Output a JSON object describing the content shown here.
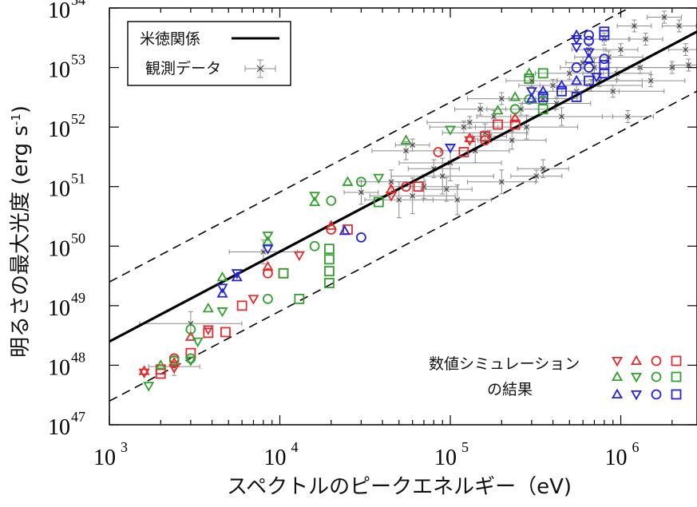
{
  "chart_data": {
    "type": "scatter",
    "x_scale": "log",
    "y_scale": "log",
    "xlim": [
      1000,
      2800000
    ],
    "ylim": [
      1e+47,
      1e+54
    ],
    "xlabel": "スペクトルのピークエネルギー（eV)",
    "ylabel_main": "明るさの最大光度",
    "ylabel_unit": "(erg s",
    "ylabel_unit_exp": "-1",
    "ylabel_unit_close": ")",
    "x_ticks": [
      {
        "value": 1000,
        "base": "10",
        "exp": "3"
      },
      {
        "value": 10000,
        "base": "10",
        "exp": "4"
      },
      {
        "value": 100000,
        "base": "10",
        "exp": "5"
      },
      {
        "value": 1000000,
        "base": "10",
        "exp": "6"
      }
    ],
    "y_ticks": [
      {
        "value": 1e+47,
        "base": "10",
        "exp": "47"
      },
      {
        "value": 1e+48,
        "base": "10",
        "exp": "48"
      },
      {
        "value": 1e+49,
        "base": "10",
        "exp": "49"
      },
      {
        "value": 1e+50,
        "base": "10",
        "exp": "50"
      },
      {
        "value": 1e+51,
        "base": "10",
        "exp": "51"
      },
      {
        "value": 1e+52,
        "base": "10",
        "exp": "52"
      },
      {
        "value": 1e+53,
        "base": "10",
        "exp": "53"
      },
      {
        "value": 1e+54,
        "base": "10",
        "exp": "54"
      }
    ],
    "relation": {
      "name": "米徳関係",
      "points": [
        [
          1000,
          2.5e+48
        ],
        [
          2800000,
          4e+53
        ]
      ],
      "band_upper": [
        [
          1000,
          2.5e+49
        ],
        [
          2800000,
          4e+54
        ]
      ],
      "band_lower": [
        [
          1000,
          2.5e+47
        ],
        [
          2800000,
          4e+52
        ]
      ]
    },
    "legend": {
      "position": "top-left",
      "relation_label": "米徳関係",
      "observed_label": "観測データ"
    },
    "sim_label_line1": "数値シミュレーション",
    "sim_label_line2": "の結果",
    "sim_key_symbols": [
      [
        "tri-down",
        "tri-up",
        "circle",
        "square"
      ],
      [
        "tri-up",
        "tri-down",
        "circle",
        "square"
      ],
      [
        "tri-up",
        "tri-down",
        "circle",
        "square"
      ]
    ],
    "colors": {
      "relation": "#000000",
      "observed": "#8c8c8c",
      "red": "#e8292b",
      "green": "#31a12e",
      "blue": "#2121e0"
    },
    "observed": [
      [
        3000,
        5e+48,
        0.3,
        0.2
      ],
      [
        2400,
        9.5e+47,
        0.15,
        0.15
      ],
      [
        8000,
        8e+49,
        0.2,
        0.2
      ],
      [
        30000,
        8e+50,
        0.1,
        0.2
      ],
      [
        50000,
        6e+50,
        0.2,
        0.3
      ],
      [
        60000,
        5e+51,
        0.1,
        0.1
      ],
      [
        60000,
        7e+50,
        0.25,
        0.3
      ],
      [
        70000,
        1e+51,
        0.2,
        0.2
      ],
      [
        80000,
        2e+51,
        0.15,
        0.15
      ],
      [
        90000,
        1.5e+51,
        0.3,
        0.3
      ],
      [
        100000,
        2.5e+51,
        0.3,
        0.3
      ],
      [
        110000,
        6e+50,
        0.2,
        0.25
      ],
      [
        120000,
        1e+52,
        0.2,
        0.1
      ],
      [
        140000,
        4e+51,
        0.2,
        0.2
      ],
      [
        150000,
        2e+52,
        0.15,
        0.1
      ],
      [
        160000,
        8e+51,
        0.25,
        0.15
      ],
      [
        180000,
        1.5e+52,
        0.1,
        0.1
      ],
      [
        200000,
        3e+52,
        0.2,
        0.1
      ],
      [
        200000,
        1.2e+51,
        0.2,
        0.2
      ],
      [
        230000,
        6e+51,
        0.2,
        0.15
      ],
      [
        260000,
        2e+52,
        0.2,
        0.1
      ],
      [
        280000,
        1e+52,
        0.3,
        0.2
      ],
      [
        300000,
        6e+52,
        0.15,
        0.1
      ],
      [
        350000,
        3e+52,
        0.2,
        0.1
      ],
      [
        350000,
        2e+51,
        0.15,
        0.15
      ],
      [
        400000,
        5e+52,
        0.2,
        0.1
      ],
      [
        450000,
        1.5e+52,
        0.3,
        0.15
      ],
      [
        500000,
        8e+52,
        0.2,
        0.1
      ],
      [
        550000,
        4e+52,
        0.25,
        0.1
      ],
      [
        600000,
        1.2e+53,
        0.1,
        0.1
      ],
      [
        650000,
        2e+53,
        0.1,
        0.1
      ],
      [
        700000,
        1e+53,
        0.2,
        0.15
      ],
      [
        750000,
        6e+52,
        0.25,
        0.1
      ],
      [
        800000,
        3e+53,
        0.15,
        0.1
      ],
      [
        850000,
        1.5e+53,
        0.2,
        0.1
      ],
      [
        900000,
        4e+52,
        0.3,
        0.1
      ],
      [
        950000,
        8e+52,
        0.2,
        0.1
      ],
      [
        1000000,
        2e+53,
        0.1,
        0.1
      ],
      [
        1100000,
        1.5e+52,
        0.15,
        0.1
      ],
      [
        1200000,
        5e+53,
        0.1,
        0.1
      ],
      [
        1300000,
        1e+53,
        0.2,
        0.1
      ],
      [
        1400000,
        3e+53,
        0.1,
        0.1
      ],
      [
        1500000,
        6e+52,
        0.2,
        0.1
      ],
      [
        1700000,
        1.5e+54,
        0.1,
        0.1
      ],
      [
        1800000,
        7e+53,
        0.1,
        0.1
      ],
      [
        2000000,
        1e+53,
        0.2,
        0.1
      ],
      [
        2200000,
        5e+53,
        0.1,
        0.1
      ],
      [
        2400000,
        2e+53,
        0.1,
        0.1
      ],
      [
        2500000,
        1.1e+53,
        0.1,
        0.1
      ],
      [
        55000,
        4e+51,
        0.2,
        0.15
      ],
      [
        45000,
        1.2e+51,
        0.2,
        0.2
      ],
      [
        170000,
        7e+51,
        0.1,
        0.1
      ],
      [
        320000,
        1.5e+51,
        0.15,
        0.1
      ],
      [
        95000,
        9e+50,
        0.15,
        0.2
      ],
      [
        130000,
        1.2e+52,
        0.25,
        0.1
      ],
      [
        420000,
        2.5e+52,
        0.2,
        0.1
      ],
      [
        670000,
        5e+52,
        0.3,
        0.1
      ]
    ],
    "simulations": [
      {
        "color": "red",
        "shape": "tri-down",
        "x": 1600,
        "y": 7.5e+47
      },
      {
        "color": "red",
        "shape": "tri-up",
        "x": 1600,
        "y": 8e+47
      },
      {
        "color": "red",
        "shape": "square",
        "x": 2000,
        "y": 7.2e+47
      },
      {
        "color": "red",
        "shape": "square",
        "x": 2000,
        "y": 8.5e+47
      },
      {
        "color": "red",
        "shape": "tri-down",
        "x": 2400,
        "y": 9e+47
      },
      {
        "color": "red",
        "shape": "tri-up",
        "x": 2400,
        "y": 1.1e+48
      },
      {
        "color": "red",
        "shape": "circle",
        "x": 2400,
        "y": 1.3e+48
      },
      {
        "color": "red",
        "shape": "square",
        "x": 3000,
        "y": 1.6e+48
      },
      {
        "color": "red",
        "shape": "tri-up",
        "x": 3000,
        "y": 3e+48
      },
      {
        "color": "red",
        "shape": "square",
        "x": 3800,
        "y": 3.5e+48
      },
      {
        "color": "red",
        "shape": "tri-down",
        "x": 3800,
        "y": 4e+48
      },
      {
        "color": "red",
        "shape": "square",
        "x": 4800,
        "y": 3.6e+48
      },
      {
        "color": "red",
        "shape": "square",
        "x": 6000,
        "y": 1e+49
      },
      {
        "color": "red",
        "shape": "tri-down",
        "x": 7000,
        "y": 1.3e+49
      },
      {
        "color": "red",
        "shape": "circle",
        "x": 8500,
        "y": 3.5e+49
      },
      {
        "color": "red",
        "shape": "tri-up",
        "x": 8500,
        "y": 4.5e+49
      },
      {
        "color": "red",
        "shape": "square",
        "x": 10500,
        "y": 3.5e+49
      },
      {
        "color": "red",
        "shape": "tri-down",
        "x": 13000,
        "y": 7e+49
      },
      {
        "color": "red",
        "shape": "circle",
        "x": 20000,
        "y": 1.9e+50
      },
      {
        "color": "red",
        "shape": "tri-up",
        "x": 20000,
        "y": 2.2e+50
      },
      {
        "color": "red",
        "shape": "square",
        "x": 25000,
        "y": 1.9e+50
      },
      {
        "color": "red",
        "shape": "tri-down",
        "x": 45000,
        "y": 7e+50
      },
      {
        "color": "red",
        "shape": "tri-up",
        "x": 45000,
        "y": 9e+50
      },
      {
        "color": "red",
        "shape": "circle",
        "x": 55000,
        "y": 1e+51
      },
      {
        "color": "red",
        "shape": "square",
        "x": 65000,
        "y": 1e+51
      },
      {
        "color": "red",
        "shape": "circle",
        "x": 85000,
        "y": 3.8e+51
      },
      {
        "color": "red",
        "shape": "square",
        "x": 120000,
        "y": 3.8e+51
      },
      {
        "color": "red",
        "shape": "tri-down",
        "x": 130000,
        "y": 6e+51
      },
      {
        "color": "red",
        "shape": "tri-up",
        "x": 130000,
        "y": 6.5e+51
      },
      {
        "color": "red",
        "shape": "circle",
        "x": 160000,
        "y": 6e+51
      },
      {
        "color": "red",
        "shape": "square",
        "x": 160000,
        "y": 7e+51
      },
      {
        "color": "red",
        "shape": "square",
        "x": 190000,
        "y": 1.1e+52
      },
      {
        "color": "red",
        "shape": "square",
        "x": 240000,
        "y": 1.1e+52
      },
      {
        "color": "red",
        "shape": "tri-up",
        "x": 240000,
        "y": 1.4e+52
      },
      {
        "color": "green",
        "shape": "tri-down",
        "x": 1700,
        "y": 4.5e+47
      },
      {
        "color": "green",
        "shape": "tri-up",
        "x": 2000,
        "y": 1e+48
      },
      {
        "color": "green",
        "shape": "circle",
        "x": 2400,
        "y": 1.2e+48
      },
      {
        "color": "green",
        "shape": "tri-down",
        "x": 3000,
        "y": 1.2e+48
      },
      {
        "color": "green",
        "shape": "circle",
        "x": 3000,
        "y": 1.3e+48
      },
      {
        "color": "green",
        "shape": "circle",
        "x": 3000,
        "y": 4e+48
      },
      {
        "color": "green",
        "shape": "tri-down",
        "x": 3300,
        "y": 2.5e+48
      },
      {
        "color": "green",
        "shape": "tri-up",
        "x": 3800,
        "y": 9e+48
      },
      {
        "color": "green",
        "shape": "tri-down",
        "x": 4600,
        "y": 8e+48
      },
      {
        "color": "green",
        "shape": "tri-up",
        "x": 4600,
        "y": 3e+49
      },
      {
        "color": "green",
        "shape": "circle",
        "x": 8500,
        "y": 1.3e+49
      },
      {
        "color": "green",
        "shape": "tri-down",
        "x": 5600,
        "y": 3.5e+49
      },
      {
        "color": "green",
        "shape": "tri-up",
        "x": 8500,
        "y": 1.2e+50
      },
      {
        "color": "green",
        "shape": "tri-down",
        "x": 8500,
        "y": 1.5e+50
      },
      {
        "color": "green",
        "shape": "square",
        "x": 10500,
        "y": 3.5e+49
      },
      {
        "color": "green",
        "shape": "square",
        "x": 13000,
        "y": 1.3e+49
      },
      {
        "color": "green",
        "shape": "circle",
        "x": 16000,
        "y": 1e+50
      },
      {
        "color": "green",
        "shape": "tri-up",
        "x": 16000,
        "y": 5.5e+50
      },
      {
        "color": "green",
        "shape": "tri-down",
        "x": 16000,
        "y": 7e+50
      },
      {
        "color": "green",
        "shape": "square",
        "x": 19500,
        "y": 2.4e+49
      },
      {
        "color": "green",
        "shape": "square",
        "x": 19500,
        "y": 3.8e+49
      },
      {
        "color": "green",
        "shape": "square",
        "x": 19500,
        "y": 6e+49
      },
      {
        "color": "green",
        "shape": "square",
        "x": 19500,
        "y": 9e+49
      },
      {
        "color": "green",
        "shape": "circle",
        "x": 20000,
        "y": 5.8e+50
      },
      {
        "color": "green",
        "shape": "tri-up",
        "x": 25000,
        "y": 1.2e+51
      },
      {
        "color": "green",
        "shape": "circle",
        "x": 30000,
        "y": 1.2e+51
      },
      {
        "color": "green",
        "shape": "tri-down",
        "x": 38000,
        "y": 1.4e+51
      },
      {
        "color": "green",
        "shape": "square",
        "x": 38000,
        "y": 5.5e+50
      },
      {
        "color": "green",
        "shape": "tri-up",
        "x": 55000,
        "y": 6e+51
      },
      {
        "color": "green",
        "shape": "tri-down",
        "x": 100000,
        "y": 9e+51
      },
      {
        "color": "green",
        "shape": "tri-up",
        "x": 190000,
        "y": 1.9e+52
      },
      {
        "color": "green",
        "shape": "circle",
        "x": 240000,
        "y": 2e+52
      },
      {
        "color": "green",
        "shape": "tri-up",
        "x": 240000,
        "y": 3.2e+52
      },
      {
        "color": "green",
        "shape": "circle",
        "x": 290000,
        "y": 2.9e+52
      },
      {
        "color": "green",
        "shape": "square",
        "x": 290000,
        "y": 6.5e+52
      },
      {
        "color": "green",
        "shape": "tri-up",
        "x": 290000,
        "y": 8e+52
      },
      {
        "color": "green",
        "shape": "square",
        "x": 350000,
        "y": 2e+52
      },
      {
        "color": "green",
        "shape": "square",
        "x": 350000,
        "y": 8e+52
      },
      {
        "color": "green",
        "shape": "circle",
        "x": 350000,
        "y": 2.8e+52
      },
      {
        "color": "blue",
        "shape": "tri-up",
        "x": 4600,
        "y": 1.6e+49
      },
      {
        "color": "blue",
        "shape": "tri-down",
        "x": 4600,
        "y": 2e+49
      },
      {
        "color": "blue",
        "shape": "tri-up",
        "x": 5600,
        "y": 3e+49
      },
      {
        "color": "blue",
        "shape": "tri-down",
        "x": 5600,
        "y": 3.5e+49
      },
      {
        "color": "blue",
        "shape": "tri-down",
        "x": 8500,
        "y": 9e+49
      },
      {
        "color": "blue",
        "shape": "tri-up",
        "x": 24000,
        "y": 1.8e+50
      },
      {
        "color": "blue",
        "shape": "circle",
        "x": 30000,
        "y": 1.4e+50
      },
      {
        "color": "blue",
        "shape": "tri-down",
        "x": 100000,
        "y": 4.5e+51
      },
      {
        "color": "blue",
        "shape": "tri-up",
        "x": 300000,
        "y": 3e+52
      },
      {
        "color": "blue",
        "shape": "tri-down",
        "x": 300000,
        "y": 4e+52
      },
      {
        "color": "blue",
        "shape": "square",
        "x": 350000,
        "y": 3.2e+52
      },
      {
        "color": "blue",
        "shape": "tri-up",
        "x": 350000,
        "y": 4e+52
      },
      {
        "color": "blue",
        "shape": "tri-up",
        "x": 450000,
        "y": 5e+52
      },
      {
        "color": "blue",
        "shape": "square",
        "x": 450000,
        "y": 4e+52
      },
      {
        "color": "blue",
        "shape": "tri-up",
        "x": 550000,
        "y": 6e+52
      },
      {
        "color": "blue",
        "shape": "square",
        "x": 550000,
        "y": 3.2e+52
      },
      {
        "color": "blue",
        "shape": "tri-down",
        "x": 550000,
        "y": 2.2e+53
      },
      {
        "color": "blue",
        "shape": "tri-down",
        "x": 550000,
        "y": 3e+53
      },
      {
        "color": "blue",
        "shape": "tri-up",
        "x": 550000,
        "y": 3.5e+53
      },
      {
        "color": "blue",
        "shape": "circle",
        "x": 550000,
        "y": 1e+53
      },
      {
        "color": "blue",
        "shape": "circle",
        "x": 650000,
        "y": 1e+53
      },
      {
        "color": "blue",
        "shape": "circle",
        "x": 650000,
        "y": 2.8e+53
      },
      {
        "color": "blue",
        "shape": "circle",
        "x": 650000,
        "y": 3.5e+53
      },
      {
        "color": "blue",
        "shape": "tri-up",
        "x": 650000,
        "y": 1.4e+53
      },
      {
        "color": "blue",
        "shape": "tri-down",
        "x": 650000,
        "y": 1.8e+53
      },
      {
        "color": "blue",
        "shape": "square",
        "x": 650000,
        "y": 6e+52
      },
      {
        "color": "blue",
        "shape": "square",
        "x": 800000,
        "y": 8e+52
      },
      {
        "color": "blue",
        "shape": "square",
        "x": 800000,
        "y": 1.1e+53
      },
      {
        "color": "blue",
        "shape": "square",
        "x": 800000,
        "y": 3.5e+53
      },
      {
        "color": "blue",
        "shape": "square",
        "x": 800000,
        "y": 4e+53
      },
      {
        "color": "blue",
        "shape": "circle",
        "x": 800000,
        "y": 1.4e+53
      },
      {
        "color": "blue",
        "shape": "tri-down",
        "x": 720000,
        "y": 7e+52
      }
    ]
  }
}
